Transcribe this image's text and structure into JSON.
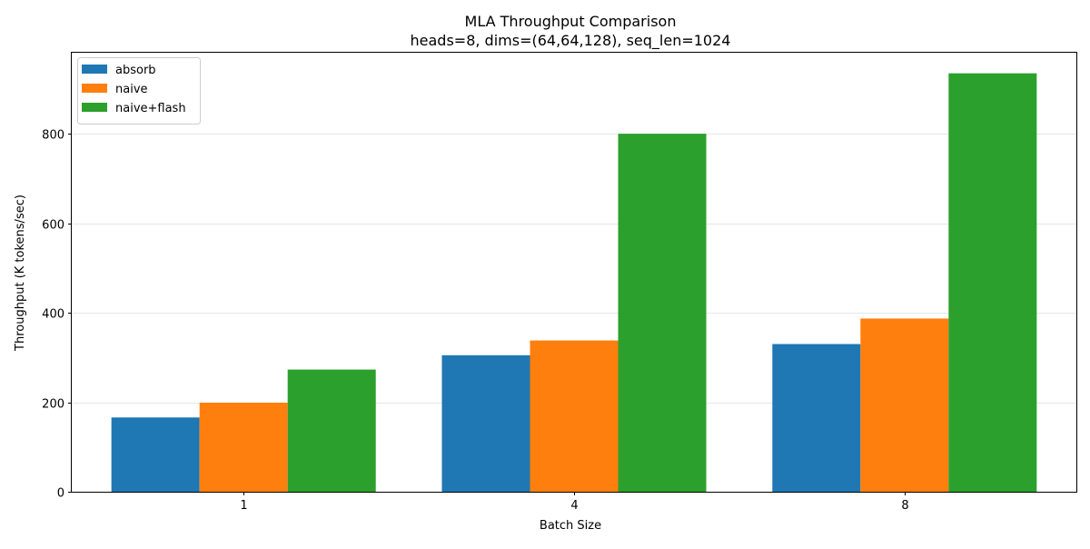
{
  "chart_data": {
    "type": "bar",
    "title": "MLA Throughput Comparison",
    "subtitle": "heads=8, dims=(64,64,128), seq_len=1024",
    "xlabel": "Batch Size",
    "ylabel": "Throughput (K tokens/sec)",
    "categories": [
      "1",
      "4",
      "8"
    ],
    "series": [
      {
        "name": "absorb",
        "color": "#1f77b4",
        "values": [
          166,
          305,
          330
        ]
      },
      {
        "name": "naive",
        "color": "#ff7f0e",
        "values": [
          199,
          338,
          387
        ]
      },
      {
        "name": "naive+flash",
        "color": "#2ca02c",
        "values": [
          273,
          800,
          935
        ]
      }
    ],
    "ylim": [
      0,
      981
    ],
    "yticks": [
      0,
      200,
      400,
      600,
      800
    ],
    "grid": "y",
    "legend_position": "top-left"
  }
}
